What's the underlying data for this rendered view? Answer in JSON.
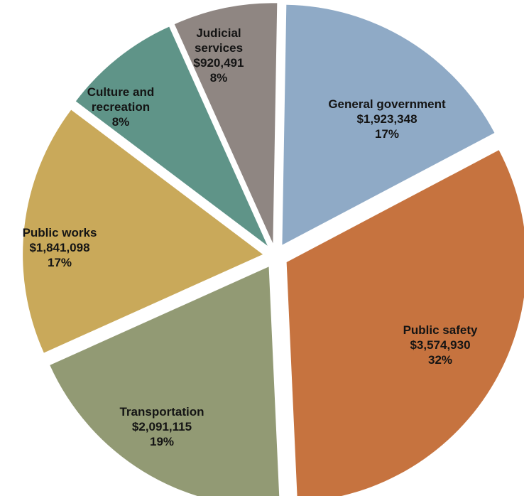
{
  "chart_data": {
    "type": "pie",
    "title": "",
    "slices": [
      {
        "name": "General government",
        "value": 1923348,
        "value_label": "$1,923,348",
        "percent_label": "17%",
        "color": "#8faac6"
      },
      {
        "name": "Public safety",
        "value": 3574930,
        "value_label": "$3,574,930",
        "percent_label": "32%",
        "color": "#c6733f"
      },
      {
        "name": "Transportation",
        "value": 2091115,
        "value_label": "$2,091,115",
        "percent_label": "19%",
        "color": "#929a74"
      },
      {
        "name": "Public works",
        "value": 1841098,
        "value_label": "$1,841,098",
        "percent_label": "17%",
        "color": "#c9a95a"
      },
      {
        "name": "Culture and recreation",
        "value_label": "",
        "percent_label": "8%",
        "color": "#5f9488"
      },
      {
        "name": "Judicial services",
        "value": 920491,
        "value_label": "$920,491",
        "percent_label": "8%",
        "color": "#8f8682"
      }
    ]
  }
}
